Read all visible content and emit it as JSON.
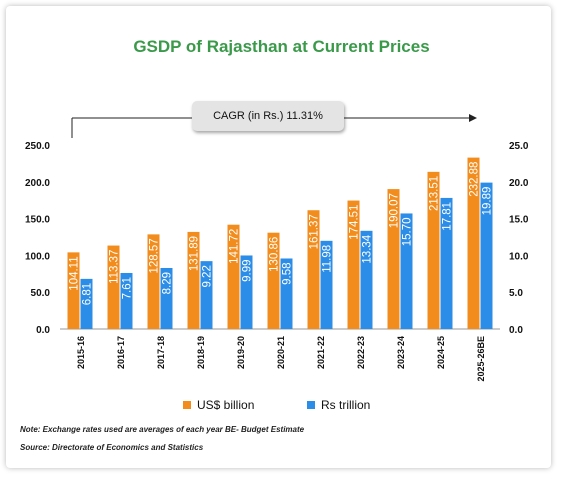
{
  "chart_data": {
    "type": "bar",
    "title": "GSDP of Rajasthan at Current Prices",
    "annotation": "CAGR (in Rs.) 11.31%",
    "categories": [
      "2015-16",
      "2016-17",
      "2017-18",
      "2018-19",
      "2019-20",
      "2020-21",
      "2021-22",
      "2022-23",
      "2023-24",
      "2024-25",
      "2025-26BE"
    ],
    "series": [
      {
        "name": "US$ billion",
        "axis": "left",
        "color": "#f28c1c",
        "values": [
          104.11,
          113.37,
          128.57,
          131.89,
          141.72,
          130.86,
          161.37,
          174.51,
          190.07,
          213.51,
          232.88
        ],
        "labels": [
          "104.11",
          "113.37",
          "128.57",
          "131.89",
          "141.72",
          "130.86",
          "161.37",
          "174.51",
          "190.07",
          "213.51",
          "232.88"
        ]
      },
      {
        "name": "Rs trillion",
        "axis": "right",
        "color": "#2b8de8",
        "values": [
          6.81,
          7.61,
          8.29,
          9.22,
          9.99,
          9.58,
          11.98,
          13.34,
          15.7,
          17.81,
          19.89
        ],
        "labels": [
          "6.81",
          "7.61",
          "8.29",
          "9.22",
          "9.99",
          "9.58",
          "11.98",
          "13.34",
          "15.70",
          "17.81",
          "19.89"
        ]
      }
    ],
    "ylim_left": [
      0,
      250
    ],
    "ylim_right": [
      0,
      25
    ],
    "left_ticks": [
      "0.0",
      "50.0",
      "100.0",
      "150.0",
      "200.0",
      "250.0"
    ],
    "right_ticks": [
      "0.0",
      "5.0",
      "10.0",
      "15.0",
      "20.0",
      "25.0"
    ],
    "grid": false,
    "legend_position": "bottom"
  },
  "notes": {
    "exchange": "Note: Exchange rates used are averages of each year BE- Budget Estimate",
    "source": "Source: Directorate of Economics and Statistics"
  }
}
